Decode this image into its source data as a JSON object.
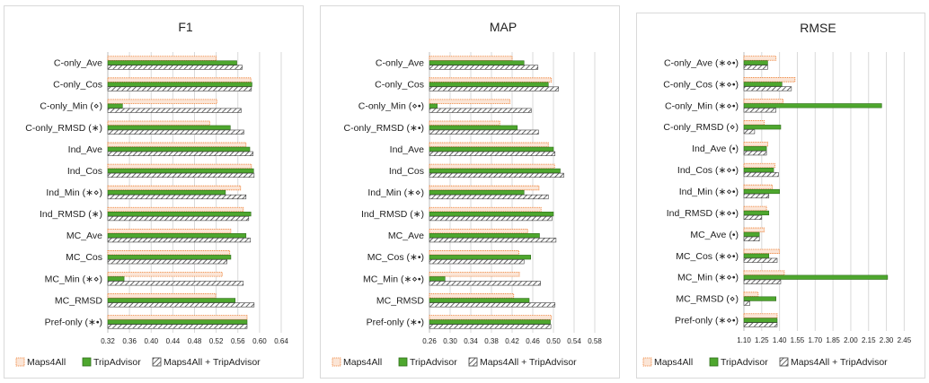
{
  "legend": {
    "maps4all": "Maps4All",
    "tripadvisor": "TripAdvisor",
    "combined": "Maps4All + TripAdvisor"
  },
  "colors": {
    "maps4all_fill": "#fbe5d6",
    "maps4all_stroke": "#ed7d31",
    "tripadvisor": "#4ea72e",
    "combined_hatch": "#404040",
    "grid": "#d9d9d9",
    "frame": "#d9d9d9"
  },
  "chart_data": [
    {
      "type": "bar",
      "orientation": "horizontal",
      "title": "F1",
      "grid": true,
      "legend_position": "bottom",
      "xlim": [
        0.32,
        0.64
      ],
      "xticks": [
        "0.32",
        "0.36",
        "0.40",
        "0.44",
        "0.48",
        "0.52",
        "0.56",
        "0.60",
        "0.64"
      ],
      "categories": [
        "C-only_Ave",
        "C-only_Cos",
        "C-only_Min (⋄)",
        "C-only_RMSD (∗)",
        "Ind_Ave",
        "Ind_Cos",
        "Ind_Min (∗⋄)",
        "Ind_RMSD (∗)",
        "MC_Ave",
        "MC_Cos",
        "MC_Min (∗⋄)",
        "MC_RMSD",
        "Pref-only (∗•)"
      ],
      "series": [
        {
          "name": "Maps4All",
          "values": [
            0.52,
            0.584,
            0.521,
            0.508,
            0.575,
            0.585,
            0.565,
            0.57,
            0.547,
            0.545,
            0.531,
            0.519,
            0.577
          ]
        },
        {
          "name": "TripAdvisor",
          "values": [
            0.558,
            0.586,
            0.347,
            0.546,
            0.582,
            0.589,
            0.537,
            0.584,
            0.575,
            0.547,
            0.35,
            0.555,
            0.577
          ]
        },
        {
          "name": "Maps4All + TripAdvisor",
          "values": [
            0.568,
            0.585,
            0.566,
            0.571,
            0.588,
            0.59,
            0.575,
            0.58,
            0.583,
            0.54,
            0.57,
            0.59,
            0.577
          ]
        }
      ]
    },
    {
      "type": "bar",
      "orientation": "horizontal",
      "title": "MAP",
      "grid": true,
      "legend_position": "bottom",
      "xlim": [
        0.26,
        0.58
      ],
      "xticks": [
        "0.26",
        "0.30",
        "0.34",
        "0.38",
        "0.42",
        "0.46",
        "0.50",
        "0.54",
        "0.58"
      ],
      "categories": [
        "C-only_Ave",
        "C-only_Cos",
        "C-only_Min (⋄•)",
        "C-only_RMSD (∗•)",
        "Ind_Ave",
        "Ind_Cos",
        "Ind_Min (∗⋄)",
        "Ind_RMSD (∗)",
        "MC_Ave",
        "MC_Cos (∗•)",
        "MC_Min (∗⋄•)",
        "MC_RMSD",
        "Pref-only (∗•)"
      ],
      "series": [
        {
          "name": "Maps4All",
          "values": [
            0.42,
            0.496,
            0.416,
            0.396,
            0.49,
            0.502,
            0.472,
            0.476,
            0.45,
            0.433,
            0.434,
            0.423,
            0.496
          ]
        },
        {
          "name": "TripAdvisor",
          "values": [
            0.443,
            0.49,
            0.275,
            0.43,
            0.5,
            0.513,
            0.443,
            0.5,
            0.473,
            0.456,
            0.29,
            0.453,
            0.494
          ]
        },
        {
          "name": "Maps4All + TripAdvisor",
          "values": [
            0.47,
            0.51,
            0.457,
            0.471,
            0.503,
            0.52,
            0.49,
            0.497,
            0.505,
            0.443,
            0.475,
            0.503,
            0.495
          ]
        }
      ]
    },
    {
      "type": "bar",
      "orientation": "horizontal",
      "title": "RMSE",
      "grid": true,
      "legend_position": "bottom",
      "xlim": [
        1.1,
        2.5
      ],
      "xticks": [
        "1.10",
        "1.25",
        "1.40",
        "1.55",
        "1.70",
        "1.85",
        "2.00",
        "2.15",
        "2.30",
        "2.45"
      ],
      "categories": [
        "C-only_Ave (∗⋄•)",
        "C-only_Cos (∗⋄•)",
        "C-only_Min (∗⋄•)",
        "C-only_RMSD (⋄)",
        "Ind_Ave (•)",
        "Ind_Cos (∗⋄•)",
        "Ind_Min (∗⋄•)",
        "Ind_RMSD (∗⋄•)",
        "MC_Ave (•)",
        "MC_Cos (∗⋄•)",
        "MC_Min (∗⋄•)",
        "MC_RMSD (⋄)",
        "Pref-only (∗⋄•)"
      ],
      "series": [
        {
          "name": "Maps4All",
          "values": [
            1.37,
            1.53,
            1.43,
            1.27,
            1.3,
            1.36,
            1.34,
            1.29,
            1.27,
            1.4,
            1.44,
            1.22,
            1.38
          ]
        },
        {
          "name": "TripAdvisor",
          "values": [
            1.3,
            1.42,
            2.26,
            1.41,
            1.29,
            1.35,
            1.4,
            1.31,
            1.23,
            1.31,
            2.31,
            1.37,
            1.38
          ]
        },
        {
          "name": "Maps4All + TripAdvisor",
          "values": [
            1.3,
            1.5,
            1.37,
            1.19,
            1.29,
            1.39,
            1.31,
            1.25,
            1.23,
            1.38,
            1.41,
            1.15,
            1.38
          ]
        }
      ]
    }
  ]
}
